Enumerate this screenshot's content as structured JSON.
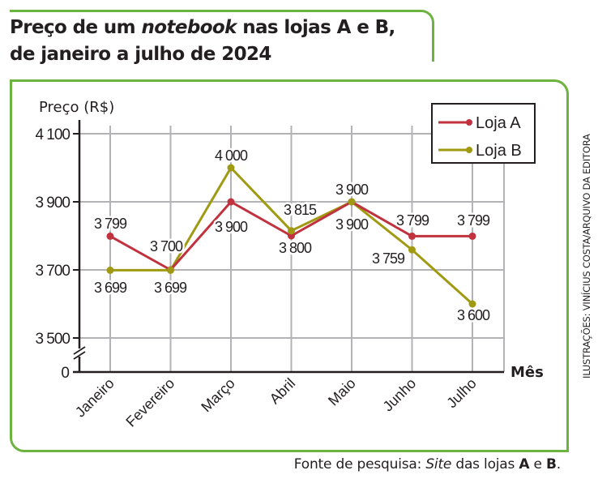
{
  "title": {
    "line1_prefix": "Preço de um ",
    "line1_italic": "notebook",
    "line1_suffix": " nas lojas A e B,",
    "line2": "de janeiro a julho de 2024"
  },
  "credit": "ILUSTRAÇÕES: VINÍCIUS COSTA/ARQUIVO DA EDITORA",
  "source": {
    "prefix": "Fonte de pesquisa: ",
    "italic": "Site",
    "middle": " das lojas ",
    "bold_a": "A",
    "conj": " e ",
    "bold_b": "B",
    "end": "."
  },
  "colors": {
    "frame_green": "#6db33f",
    "loja_a": "#c1323f",
    "loja_b": "#a09a12",
    "grid": "#b3b3b6",
    "axis": "#231f20"
  },
  "chart_data": {
    "type": "line",
    "title": "Preço de um notebook nas lojas A e B, de janeiro a julho de 2024",
    "xlabel": "Mês",
    "ylabel": "Preço (R$)",
    "categories": [
      "Janeiro",
      "Fevereiro",
      "Março",
      "Abril",
      "Maio",
      "Junho",
      "Julho"
    ],
    "yticks": [
      {
        "value": 3500,
        "label": "3 500"
      },
      {
        "value": 3700,
        "label": "3 700"
      },
      {
        "value": 3900,
        "label": "3 900"
      },
      {
        "value": 4100,
        "label": "4 100"
      }
    ],
    "origin_label": "0",
    "axis_break": true,
    "ylim": [
      3500,
      4100
    ],
    "grid": true,
    "legend_position": "top-right",
    "series": [
      {
        "name": "Loja A",
        "color": "#c1323f",
        "values": [
          3799,
          3700,
          3900,
          3800,
          3900,
          3799,
          3799
        ],
        "labels": [
          "3 799",
          "3 700",
          "3 900",
          "3 800",
          "3 900",
          "3 799",
          "3 799"
        ]
      },
      {
        "name": "Loja B",
        "color": "#a09a12",
        "values": [
          3699,
          3699,
          4000,
          3815,
          3900,
          3759,
          3600
        ],
        "labels": [
          "3 699",
          "3 699",
          "4 000",
          "3 815",
          "3 900",
          "3 759",
          "3 600"
        ]
      }
    ]
  }
}
